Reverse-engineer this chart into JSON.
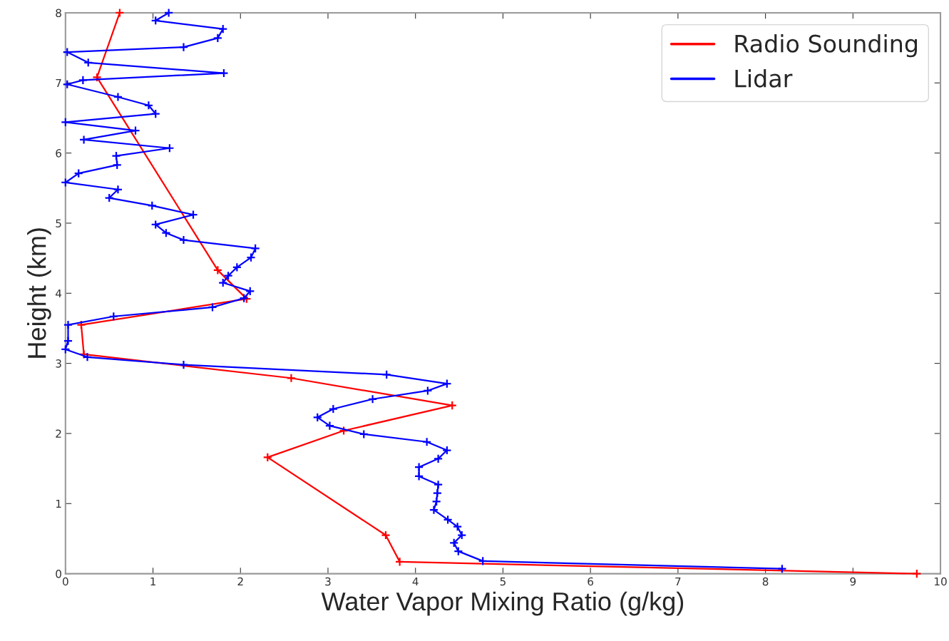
{
  "chart_data": {
    "type": "line",
    "xlabel": "Water Vapor Mixing Ratio (g/kg)",
    "ylabel": "Height (km)",
    "xlim": [
      0,
      10
    ],
    "ylim": [
      0,
      8
    ],
    "xticks": [
      0,
      1,
      2,
      3,
      4,
      5,
      6,
      7,
      8,
      9,
      10
    ],
    "yticks": [
      0,
      1,
      2,
      3,
      4,
      5,
      6,
      7,
      8
    ],
    "grid": false,
    "legend": "top right",
    "marker": "cross",
    "line_style": "solid",
    "series": [
      {
        "name": "Radio Sounding",
        "color": "#ff0000",
        "x": [
          0.62,
          0.36,
          1.74,
          2.07,
          0.18,
          0.21,
          2.58,
          4.42,
          3.18,
          2.31,
          3.66,
          3.82,
          9.73
        ],
        "values": [
          8.0,
          7.08,
          4.33,
          3.92,
          3.55,
          3.13,
          2.79,
          2.4,
          2.04,
          1.66,
          0.55,
          0.17,
          0.0
        ]
      },
      {
        "name": "Lidar",
        "color": "#0000ff",
        "x": [
          1.18,
          1.03,
          1.8,
          1.74,
          1.35,
          0.02,
          0.26,
          1.81,
          0.2,
          0.02,
          0.6,
          0.95,
          1.03,
          0.0,
          0.8,
          0.21,
          1.19,
          0.58,
          0.59,
          0.15,
          0.0,
          0.6,
          0.5,
          0.99,
          1.46,
          1.03,
          1.15,
          1.35,
          2.17,
          2.12,
          1.96,
          1.86,
          1.8,
          2.11,
          2.04,
          1.68,
          0.55,
          0.03,
          0.03,
          0.0,
          0.25,
          1.35,
          3.67,
          4.36,
          4.14,
          3.51,
          3.06,
          2.88,
          3.02,
          3.41,
          4.13,
          4.36,
          4.26,
          4.04,
          4.04,
          4.26,
          4.25,
          4.24,
          4.21,
          4.37,
          4.48,
          4.53,
          4.44,
          4.49,
          4.77,
          8.19
        ],
        "values": [
          8.0,
          7.89,
          7.77,
          7.64,
          7.51,
          7.44,
          7.29,
          7.14,
          7.04,
          6.98,
          6.8,
          6.68,
          6.56,
          6.44,
          6.32,
          6.19,
          6.07,
          5.96,
          5.83,
          5.71,
          5.58,
          5.48,
          5.36,
          5.25,
          5.12,
          4.98,
          4.86,
          4.76,
          4.64,
          4.51,
          4.37,
          4.25,
          4.15,
          4.03,
          3.93,
          3.8,
          3.67,
          3.55,
          3.32,
          3.2,
          3.09,
          2.98,
          2.84,
          2.71,
          2.61,
          2.49,
          2.35,
          2.23,
          2.11,
          1.99,
          1.88,
          1.76,
          1.64,
          1.52,
          1.39,
          1.27,
          1.15,
          1.03,
          0.91,
          0.77,
          0.67,
          0.55,
          0.44,
          0.32,
          0.18,
          0.07
        ]
      }
    ]
  }
}
